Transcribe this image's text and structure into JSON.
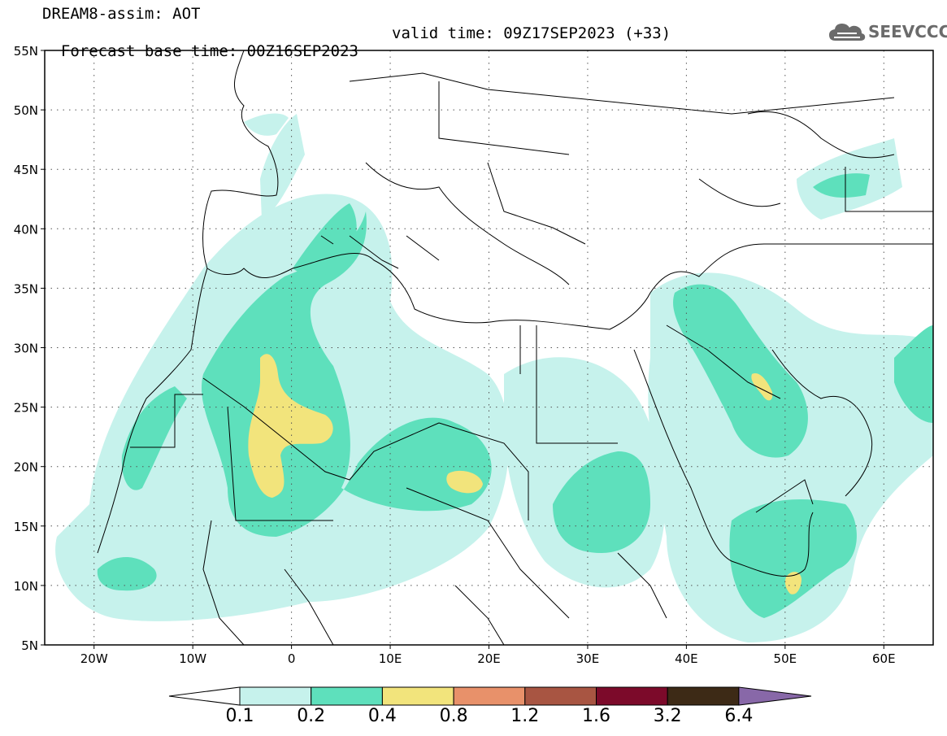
{
  "header": {
    "title_line": "DREAM8-assim: AOT",
    "base_time": "Forecast base time: 00Z16SEP2023",
    "valid_time": "valid time: 09Z17SEP2023 (+33)"
  },
  "logo": {
    "text": "SEEVCCC",
    "icon": "cloud-icon"
  },
  "map": {
    "variable": "AOT",
    "lon_range": [
      -25,
      65
    ],
    "lat_range": [
      5,
      55
    ],
    "lat_ticks": [
      "5N",
      "10N",
      "15N",
      "20N",
      "25N",
      "30N",
      "35N",
      "40N",
      "45N",
      "50N",
      "55N"
    ],
    "lon_ticks": [
      "20W",
      "10W",
      "0",
      "10E",
      "20E",
      "30E",
      "40E",
      "50E",
      "60E"
    ],
    "grid": true
  },
  "colorbar": {
    "labels": [
      "0.1",
      "0.2",
      "0.4",
      "0.8",
      "1.2",
      "1.6",
      "3.2",
      "6.4"
    ],
    "colors": [
      "#ffffff",
      "#c6f2ec",
      "#5ee0bc",
      "#f2e47c",
      "#e8916a",
      "#a85542",
      "#7c0a2a",
      "#3d2a16",
      "#8868a8"
    ]
  }
}
